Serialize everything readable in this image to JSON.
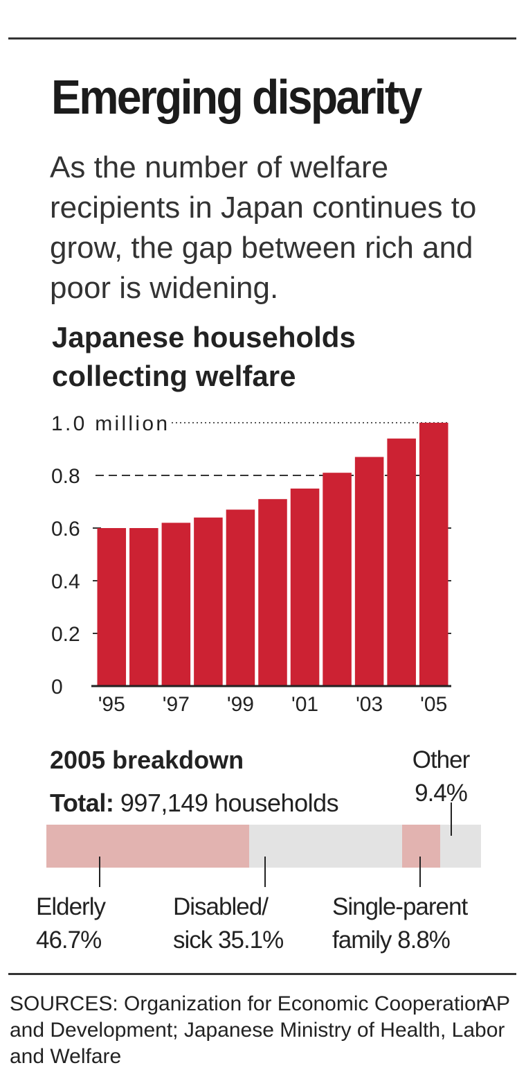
{
  "header": {
    "title": "Emerging disparity",
    "subtitle": "As the number of welfare recipients in Japan continues to grow, the gap between rich and poor is widening."
  },
  "chart_data": {
    "type": "bar",
    "title": "Japanese households collecting welfare",
    "xlabel": "",
    "ylabel": "",
    "ylim": [
      0,
      1.0
    ],
    "y_ticks": [
      "0",
      "0.2",
      "0.4",
      "0.6",
      "0.8",
      "1.0 million"
    ],
    "x_tick_labels": [
      "'95",
      "'97",
      "'99",
      "'01",
      "'03",
      "'05"
    ],
    "categories": [
      "1995",
      "1996",
      "1997",
      "1998",
      "1999",
      "2000",
      "2001",
      "2002",
      "2003",
      "2004",
      "2005"
    ],
    "values": [
      0.6,
      0.6,
      0.62,
      0.64,
      0.67,
      0.71,
      0.75,
      0.81,
      0.87,
      0.94,
      1.0
    ],
    "bar_color": "#cc2233",
    "grid": true
  },
  "breakdown": {
    "title": "2005 breakdown",
    "total_label": "Total:",
    "total_value": "997,149 households",
    "segments": [
      {
        "name": "Elderly",
        "pct_text": "46.7%",
        "value": 46.7,
        "color": "#e2b3b0"
      },
      {
        "name": "Disabled/ sick",
        "name_line1": "Disabled/",
        "name_line2": "sick",
        "pct_text": "35.1%",
        "value": 35.1,
        "color": "#e3e3e3"
      },
      {
        "name": "Single-parent family",
        "name_line1": "Single-parent",
        "name_line2": "family",
        "pct_text": "8.8%",
        "value": 8.8,
        "color": "#e2b3b0"
      },
      {
        "name": "Other",
        "pct_text": "9.4%",
        "value": 9.4,
        "color": "#e3e3e3"
      }
    ]
  },
  "footer": {
    "sources": "SOURCES: Organization for Economic Cooperation and Development; Japanese Ministry of Health, Labor and Welfare",
    "credit": "AP"
  }
}
